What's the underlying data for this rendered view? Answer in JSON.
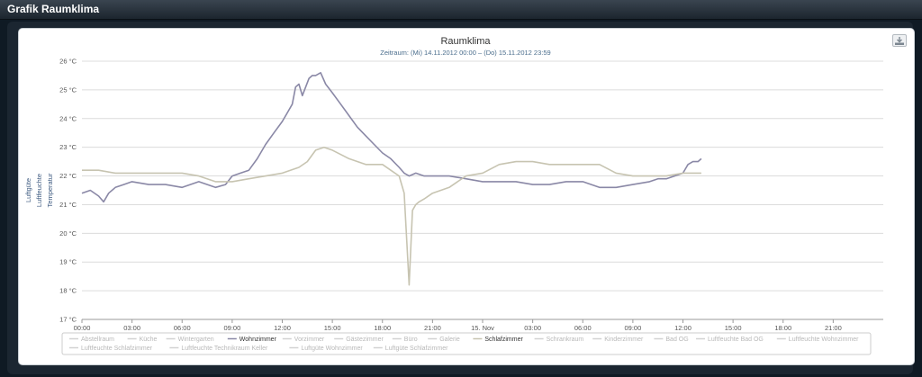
{
  "window": {
    "title": "Grafik Raumklima"
  },
  "colors": {
    "wohnzimmer": "#8a88a6",
    "schlafzimmer": "#c7c4b1",
    "grid": "#dcdcdc",
    "axis_text": "#555555"
  },
  "chart_data": {
    "type": "line",
    "title": "Raumklima",
    "subtitle": "Zeitraum: (Mi) 14.11.2012 00:00 – (Do) 15.11.2012 23:59",
    "ylabels": [
      "Luftgüte",
      "Luftfeuchte",
      "Temperatur"
    ],
    "ylim": [
      17,
      26
    ],
    "y_ticks": [
      "17 °C",
      "18 °C",
      "19 °C",
      "20 °C",
      "21 °C",
      "22 °C",
      "23 °C",
      "24 °C",
      "25 °C",
      "26 °C"
    ],
    "x_ticks": [
      "00:00",
      "03:00",
      "06:00",
      "09:00",
      "12:00",
      "15:00",
      "18:00",
      "21:00",
      "15. Nov",
      "03:00",
      "06:00",
      "09:00",
      "12:00",
      "15:00",
      "18:00",
      "21:00"
    ],
    "xlim_hours": [
      0,
      48
    ],
    "grid": true,
    "legend_position": "bottom",
    "legend": [
      "Abstellraum",
      "Küche",
      "Wintergarten",
      "Wohnzimmer",
      "Vorzimmer",
      "Gästezimmer",
      "Büro",
      "Galerie",
      "Schlafzimmer",
      "Schrankraum",
      "Kinderzimmer",
      "Bad OG",
      "Luftfeuchte Bad OG",
      "Luftfeuchte Wohnzimmer",
      "Luftfeuchte Schlafzimmer",
      "Luftfeuchte Technikraum Keller",
      "Luftgüte Wohnzimmer",
      "Luftgüte Schlafzimmer"
    ],
    "legend_active": [
      "Wohnzimmer",
      "Schlafzimmer"
    ],
    "series": [
      {
        "name": "Wohnzimmer",
        "x": [
          0,
          0.5,
          1,
          1.3,
          1.6,
          2,
          2.5,
          3,
          4,
          5,
          6,
          7,
          8,
          8.6,
          9,
          9.5,
          10,
          10.5,
          11,
          11.5,
          12,
          12.3,
          12.6,
          12.8,
          13,
          13.2,
          13.4,
          13.6,
          13.8,
          14,
          14.3,
          14.6,
          15,
          15.5,
          16,
          16.5,
          17,
          17.5,
          18,
          18.5,
          19,
          19.3,
          19.6,
          20,
          20.5,
          21,
          22,
          23,
          24,
          25,
          26,
          27,
          28,
          29,
          30,
          31,
          32,
          33,
          34,
          34.5,
          35,
          35.5,
          36,
          36.3,
          36.6,
          36.9,
          37.1
        ],
        "y": [
          21.4,
          21.5,
          21.3,
          21.1,
          21.4,
          21.6,
          21.7,
          21.8,
          21.7,
          21.7,
          21.6,
          21.8,
          21.6,
          21.7,
          22.0,
          22.1,
          22.2,
          22.6,
          23.1,
          23.5,
          23.9,
          24.2,
          24.5,
          25.1,
          25.2,
          24.8,
          25.1,
          25.4,
          25.5,
          25.5,
          25.6,
          25.2,
          24.9,
          24.5,
          24.1,
          23.7,
          23.4,
          23.1,
          22.8,
          22.6,
          22.3,
          22.1,
          22.0,
          22.1,
          22.0,
          22.0,
          22.0,
          21.9,
          21.8,
          21.8,
          21.8,
          21.7,
          21.7,
          21.8,
          21.8,
          21.6,
          21.6,
          21.7,
          21.8,
          21.9,
          21.9,
          22.0,
          22.1,
          22.4,
          22.5,
          22.5,
          22.6
        ]
      },
      {
        "name": "Schlafzimmer",
        "x": [
          0,
          1,
          2,
          3,
          4,
          5,
          6,
          7,
          8,
          9,
          10,
          11,
          12,
          13,
          13.5,
          14,
          14.5,
          15,
          16,
          17,
          18,
          18.5,
          19,
          19.3,
          19.6,
          19.8,
          20,
          20.2,
          20.5,
          21,
          22,
          23,
          24,
          25,
          26,
          27,
          28,
          29,
          30,
          31,
          32,
          33,
          34,
          35,
          36,
          37.1
        ],
        "y": [
          22.2,
          22.2,
          22.1,
          22.1,
          22.1,
          22.1,
          22.1,
          22.0,
          21.8,
          21.8,
          21.9,
          22.0,
          22.1,
          22.3,
          22.5,
          22.9,
          23.0,
          22.9,
          22.6,
          22.4,
          22.4,
          22.2,
          22.0,
          21.4,
          18.2,
          20.8,
          21.0,
          21.1,
          21.2,
          21.4,
          21.6,
          22.0,
          22.1,
          22.4,
          22.5,
          22.5,
          22.4,
          22.4,
          22.4,
          22.4,
          22.1,
          22.0,
          22.0,
          22.0,
          22.1,
          22.1
        ]
      }
    ]
  }
}
